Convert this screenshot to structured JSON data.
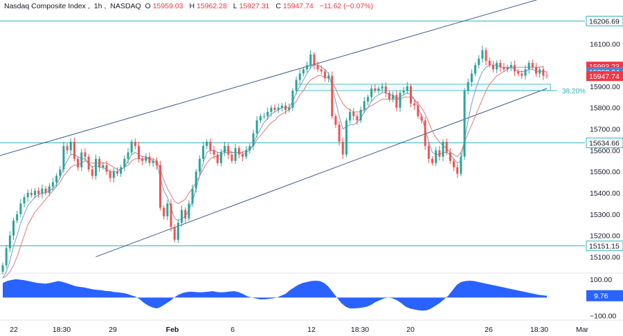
{
  "header": {
    "symbol": "Nasdaq Composite Index",
    "interval": "1h",
    "exchange": "NASDAQ",
    "open_label": "O",
    "open": "15959.03",
    "high_label": "H",
    "high": "15962.28",
    "low_label": "L",
    "low": "15927.31",
    "close_label": "C",
    "close": "15947.74",
    "change": "−11.62 (−0.07%)"
  },
  "chart_data": {
    "type": "candlestick",
    "y_axis": {
      "ticks": [
        15100,
        15200,
        15300,
        15400,
        15500,
        15600,
        15700,
        15800,
        15900,
        16000,
        16100
      ],
      "range": [
        15030,
        16260
      ]
    },
    "x_axis": {
      "ticks": [
        "22",
        "18:30",
        "29",
        "Feb",
        "6",
        "12",
        "18:30",
        "20",
        "26",
        "18:30",
        "Mar"
      ]
    },
    "price_labels": [
      {
        "text": "16206.69",
        "value": 16206.69,
        "kind": "level"
      },
      {
        "text": "15993.23",
        "value": 15993.23,
        "kind": "ma-red"
      },
      {
        "text": "15968.04",
        "value": 15968.04,
        "kind": "ma-blue"
      },
      {
        "text": "15947.74",
        "value": 15947.74,
        "kind": "last"
      },
      {
        "text": "15634.66",
        "value": 15634.66,
        "kind": "level"
      },
      {
        "text": "15151.15",
        "value": 15151.15,
        "kind": "level"
      }
    ],
    "horizontal_levels": [
      16206.69,
      15634.66,
      15151.15
    ],
    "fib_label": "38.20%",
    "fib_level": 15880,
    "candles_close": [
      15060,
      15140,
      15200,
      15270,
      15300,
      15350,
      15380,
      15400,
      15390,
      15410,
      15395,
      15420,
      15400,
      15430,
      15450,
      15480,
      15510,
      15620,
      15600,
      15640,
      15560,
      15520,
      15590,
      15570,
      15510,
      15480,
      15560,
      15520,
      15530,
      15500,
      15470,
      15500,
      15490,
      15520,
      15560,
      15590,
      15640,
      15620,
      15560,
      15550,
      15570,
      15540,
      15550,
      15530,
      15330,
      15290,
      15350,
      15240,
      15180,
      15260,
      15320,
      15280,
      15350,
      15420,
      15500,
      15560,
      15620,
      15640,
      15600,
      15580,
      15540,
      15590,
      15620,
      15580,
      15550,
      15610,
      15580,
      15570,
      15600,
      15620,
      15680,
      15740,
      15760,
      15760,
      15780,
      15800,
      15790,
      15800,
      15810,
      15790,
      15800,
      15880,
      15930,
      15960,
      15980,
      16000,
      16050,
      16000,
      15980,
      15970,
      15940,
      15950,
      15760,
      15720,
      15640,
      15580,
      15740,
      15780,
      15760,
      15740,
      15790,
      15830,
      15850,
      15890,
      15880,
      15890,
      15900,
      15870,
      15840,
      15860,
      15800,
      15870,
      15880,
      15900,
      15820,
      15810,
      15760,
      15740,
      15620,
      15560,
      15540,
      15600,
      15570,
      15640,
      15590,
      15550,
      15520,
      15490,
      15570,
      15880,
      15920,
      15960,
      16000,
      16030,
      16070,
      16020,
      16000,
      15980,
      16010,
      15990,
      15980,
      15990,
      16000,
      15970,
      15960,
      15950,
      15980,
      16010,
      15990,
      15960,
      15980,
      15950,
      15947.74
    ],
    "ma_red": [
      15000,
      15010,
      15030,
      15060,
      15100,
      15150,
      15200,
      15250,
      15280,
      15310,
      15330,
      15350,
      15370,
      15390,
      15410,
      15430,
      15450,
      15480,
      15500,
      15520,
      15530,
      15530,
      15540,
      15550,
      15540,
      15540,
      15540,
      15540,
      15540,
      15540,
      15530,
      15520,
      15510,
      15510,
      15520,
      15530,
      15550,
      15560,
      15560,
      15560,
      15560,
      15560,
      15560,
      15550,
      15510,
      15460,
      15420,
      15390,
      15360,
      15350,
      15360,
      15370,
      15400,
      15420,
      15450,
      15480,
      15510,
      15540,
      15560,
      15570,
      15570,
      15580,
      15590,
      15590,
      15590,
      15590,
      15590,
      15590,
      15600,
      15610,
      15620,
      15650,
      15670,
      15690,
      15710,
      15730,
      15740,
      15760,
      15770,
      15780,
      15790,
      15810,
      15830,
      15860,
      15880,
      15910,
      15930,
      15940,
      15950,
      15950,
      15940,
      15940,
      15920,
      15890,
      15850,
      15820,
      15800,
      15790,
      15780,
      15780,
      15780,
      15790,
      15800,
      15810,
      15820,
      15830,
      15840,
      15840,
      15840,
      15840,
      15840,
      15840,
      15850,
      15850,
      15850,
      15840,
      15820,
      15800,
      15770,
      15730,
      15690,
      15660,
      15640,
      15620,
      15610,
      15590,
      15580,
      15570,
      15590,
      15640,
      15680,
      15720,
      15760,
      15800,
      15840,
      15880,
      15910,
      15930,
      15950,
      15960,
      15970,
      15980,
      15990,
      15990,
      15990,
      15990,
      15990,
      15990,
      15990,
      15990,
      15990,
      15993.23
    ],
    "ma_blue": [
      15000,
      15030,
      15080,
      15150,
      15200,
      15260,
      15300,
      15340,
      15360,
      15380,
      15390,
      15400,
      15400,
      15410,
      15420,
      15440,
      15470,
      15520,
      15550,
      15580,
      15580,
      15570,
      15560,
      15560,
      15540,
      15520,
      15530,
      15520,
      15520,
      15510,
      15500,
      15500,
      15500,
      15510,
      15520,
      15550,
      15580,
      15590,
      15580,
      15570,
      15570,
      15560,
      15550,
      15540,
      15470,
      15410,
      15380,
      15330,
      15280,
      15270,
      15280,
      15290,
      15320,
      15360,
      15420,
      15480,
      15540,
      15590,
      15600,
      15600,
      15590,
      15590,
      15600,
      15600,
      15590,
      15590,
      15590,
      15580,
      15590,
      15600,
      15630,
      15670,
      15700,
      15730,
      15750,
      15770,
      15780,
      15790,
      15800,
      15800,
      15800,
      15830,
      15870,
      15900,
      15930,
      15960,
      15990,
      16000,
      16000,
      15990,
      15980,
      15960,
      15900,
      15830,
      15760,
      15700,
      15710,
      15720,
      15720,
      15730,
      15750,
      15780,
      15800,
      15830,
      15850,
      15860,
      15870,
      15870,
      15860,
      15860,
      15840,
      15850,
      15860,
      15870,
      15860,
      15840,
      15800,
      15760,
      15700,
      15640,
      15590,
      15580,
      15580,
      15590,
      15590,
      15580,
      15560,
      15540,
      15550,
      15650,
      15740,
      15820,
      15880,
      15930,
      15970,
      15990,
      16000,
      16000,
      16000,
      15990,
      15990,
      15990,
      15990,
      15980,
      15970,
      15970,
      15970,
      15980,
      15980,
      15970,
      15970,
      15970,
      15968.04
    ],
    "channel": {
      "upper": [
        [
          -8,
          15540
        ],
        [
          152,
          16320
        ]
      ],
      "lower": [
        [
          26,
          15100
        ],
        [
          152,
          15890
        ]
      ]
    },
    "oscillator": {
      "ticks": [
        {
          "text": "100.00",
          "value": 100
        },
        {
          "text": "−100.00",
          "value": -100
        }
      ],
      "last_label": "9.76",
      "last_value": 9.76,
      "range": [
        -120,
        130
      ],
      "values": [
        80,
        90,
        96,
        100,
        98,
        95,
        90,
        85,
        80,
        78,
        76,
        80,
        85,
        90,
        85,
        78,
        70,
        62,
        58,
        55,
        50,
        45,
        42,
        40,
        36,
        35,
        30,
        28,
        25,
        20,
        12,
        5,
        -10,
        -30,
        -45,
        -55,
        -60,
        -50,
        -35,
        -20,
        0,
        15,
        25,
        30,
        32,
        30,
        28,
        30,
        32,
        35,
        30,
        28,
        30,
        33,
        35,
        30,
        20,
        8,
        0,
        -5,
        -10,
        -10,
        -8,
        -5,
        0,
        10,
        20,
        40,
        55,
        70,
        80,
        85,
        90,
        92,
        90,
        80,
        60,
        30,
        0,
        -30,
        -50,
        -60,
        -60,
        -58,
        -55,
        -50,
        -40,
        -25,
        -15,
        -5,
        0,
        -5,
        -15,
        -30,
        -50,
        -60,
        -65,
        -70,
        -72,
        -70,
        -60,
        -45,
        -30,
        -10,
        10,
        40,
        70,
        85,
        90,
        92,
        90,
        85,
        80,
        75,
        70,
        65,
        60,
        55,
        50,
        45,
        40,
        35,
        30,
        25,
        20,
        15,
        12,
        9.76
      ]
    }
  },
  "colors": {
    "up": "#26a69a",
    "down": "#ef5350",
    "ma_red": "#e07a7a",
    "ma_blue": "#7a97c9",
    "channel": "#3a5a8a",
    "level": "#31b0b8",
    "osc_fill": "#2962ff",
    "grid_text": "#131722"
  }
}
